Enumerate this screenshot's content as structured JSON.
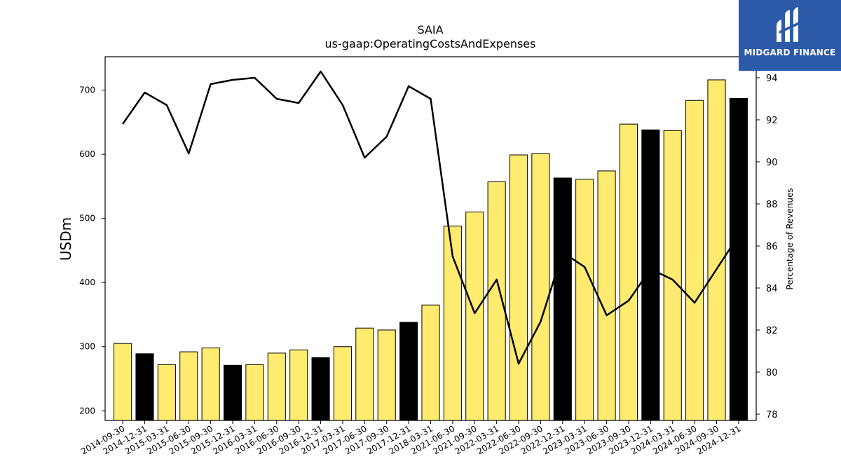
{
  "brand": {
    "name": "MIDGARD FINANCE",
    "bg_color": "#2c5aa8",
    "icon": "midgard-logo-icon"
  },
  "chart_data": {
    "type": "bar",
    "title": "SAIA",
    "subtitle": "us-gaap:OperatingCostsAndExpenses",
    "ylabel": "USDm",
    "y2label": "Percentage of Revenues",
    "ylim": [
      185,
      752
    ],
    "y2lim": [
      77.7,
      95.0
    ],
    "yticks": [
      200,
      300,
      400,
      500,
      600,
      700
    ],
    "y2ticks": [
      78,
      80,
      82,
      84,
      86,
      88,
      90,
      92,
      94
    ],
    "colors": {
      "quarter": "#ffeb70",
      "year_end": "#000000",
      "line": "#000000"
    },
    "categories": [
      "2014-09-30",
      "2014-12-31",
      "2015-03-31",
      "2015-06-30",
      "2015-09-30",
      "2015-12-31",
      "2016-03-31",
      "2016-06-30",
      "2016-09-30",
      "2016-12-31",
      "2017-03-31",
      "2017-06-30",
      "2017-09-30",
      "2017-12-31",
      "2018-03-31",
      "2021-06-30",
      "2021-09-30",
      "2022-03-31",
      "2022-06-30",
      "2022-09-30",
      "2022-12-31",
      "2023-03-31",
      "2023-06-30",
      "2023-09-30",
      "2023-12-31",
      "2024-03-31",
      "2024-06-30",
      "2024-09-30",
      "2024-12-31"
    ],
    "series": [
      {
        "type": "bar",
        "values": [
          305,
          289,
          272,
          292,
          298,
          271,
          272,
          290,
          295,
          283,
          300,
          329,
          326,
          338,
          365,
          488,
          510,
          557,
          599,
          601,
          563,
          561,
          574,
          647,
          638,
          637,
          684,
          716,
          687
        ],
        "year_end": [
          false,
          true,
          false,
          false,
          false,
          true,
          false,
          false,
          false,
          true,
          false,
          false,
          false,
          true,
          false,
          false,
          false,
          false,
          false,
          false,
          true,
          false,
          false,
          false,
          true,
          false,
          false,
          false,
          true
        ]
      },
      {
        "type": "line",
        "axis": "right",
        "values": [
          91.8,
          93.3,
          92.7,
          90.4,
          93.7,
          93.9,
          94.0,
          93.0,
          92.8,
          94.3,
          92.7,
          90.2,
          91.2,
          93.6,
          93.0,
          85.5,
          82.8,
          84.4,
          80.4,
          82.4,
          85.7,
          85.0,
          82.7,
          83.4,
          84.9,
          84.4,
          83.3,
          84.9,
          86.5
        ]
      }
    ]
  }
}
